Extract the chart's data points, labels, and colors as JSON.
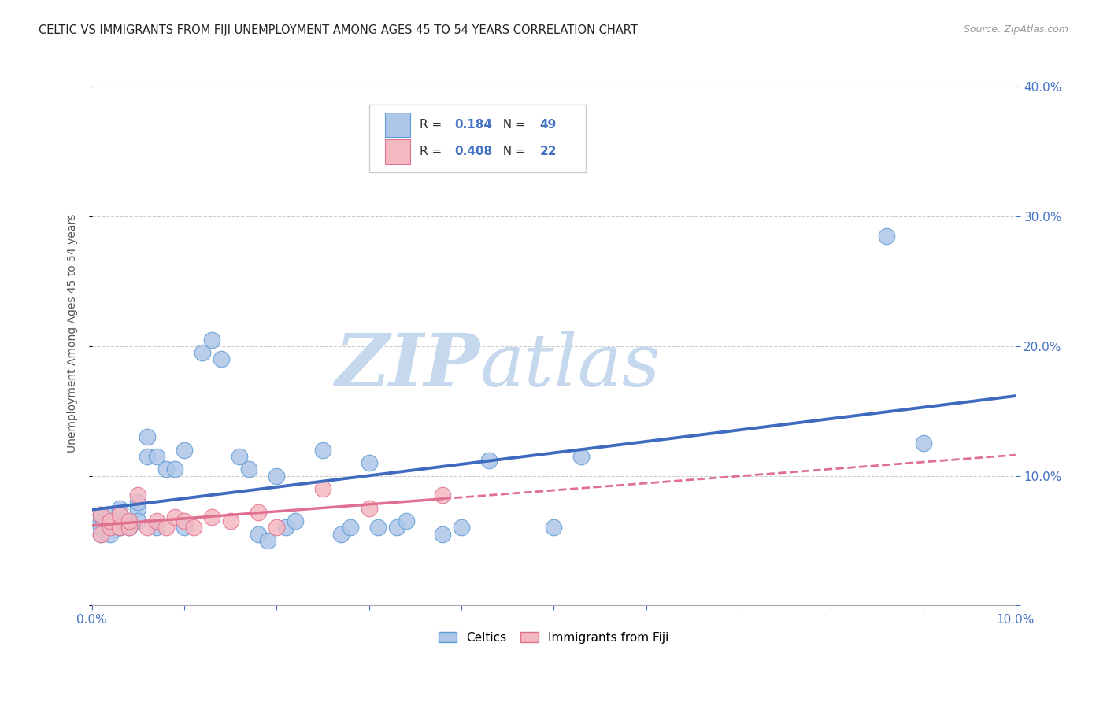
{
  "title": "CELTIC VS IMMIGRANTS FROM FIJI UNEMPLOYMENT AMONG AGES 45 TO 54 YEARS CORRELATION CHART",
  "source": "Source: ZipAtlas.com",
  "ylabel": "Unemployment Among Ages 45 to 54 years",
  "xlim": [
    0.0,
    0.1
  ],
  "ylim": [
    0.0,
    0.42
  ],
  "xticks": [
    0.0,
    0.01,
    0.02,
    0.03,
    0.04,
    0.05,
    0.06,
    0.07,
    0.08,
    0.09,
    0.1
  ],
  "yticks": [
    0.0,
    0.1,
    0.2,
    0.3,
    0.4
  ],
  "celtics_R": 0.184,
  "celtics_N": 49,
  "fiji_R": 0.408,
  "fiji_N": 22,
  "background_color": "#ffffff",
  "grid_color": "#c8c8c8",
  "celtics_color": "#aec6e8",
  "celtics_edge_color": "#5b9bd5",
  "fiji_color": "#f4b8c1",
  "fiji_edge_color": "#e07090",
  "celtics_line_color": "#3f6bbf",
  "fiji_line_color": "#e07090",
  "watermark_zip_color": "#c8ddf0",
  "watermark_atlas_color": "#c8ddf0",
  "celtics_x": [
    0.001,
    0.001,
    0.001,
    0.001,
    0.002,
    0.002,
    0.002,
    0.002,
    0.003,
    0.003,
    0.003,
    0.003,
    0.004,
    0.004,
    0.005,
    0.005,
    0.005,
    0.006,
    0.006,
    0.007,
    0.007,
    0.008,
    0.009,
    0.01,
    0.01,
    0.012,
    0.013,
    0.014,
    0.016,
    0.017,
    0.018,
    0.019,
    0.02,
    0.021,
    0.022,
    0.025,
    0.027,
    0.028,
    0.03,
    0.031,
    0.033,
    0.034,
    0.038,
    0.04,
    0.043,
    0.05,
    0.053,
    0.086,
    0.09
  ],
  "celtics_y": [
    0.055,
    0.065,
    0.07,
    0.06,
    0.06,
    0.065,
    0.07,
    0.055,
    0.06,
    0.065,
    0.075,
    0.06,
    0.065,
    0.06,
    0.075,
    0.08,
    0.065,
    0.115,
    0.13,
    0.115,
    0.06,
    0.105,
    0.105,
    0.12,
    0.06,
    0.195,
    0.205,
    0.19,
    0.115,
    0.105,
    0.055,
    0.05,
    0.1,
    0.06,
    0.065,
    0.12,
    0.055,
    0.06,
    0.11,
    0.06,
    0.06,
    0.065,
    0.055,
    0.06,
    0.112,
    0.06,
    0.115,
    0.285,
    0.125
  ],
  "fiji_x": [
    0.001,
    0.001,
    0.002,
    0.002,
    0.003,
    0.003,
    0.004,
    0.004,
    0.005,
    0.006,
    0.007,
    0.008,
    0.009,
    0.01,
    0.011,
    0.013,
    0.015,
    0.018,
    0.02,
    0.025,
    0.03,
    0.038
  ],
  "fiji_y": [
    0.055,
    0.07,
    0.06,
    0.065,
    0.06,
    0.07,
    0.06,
    0.065,
    0.085,
    0.06,
    0.065,
    0.06,
    0.068,
    0.065,
    0.06,
    0.068,
    0.065,
    0.072,
    0.06,
    0.09,
    0.075,
    0.085
  ]
}
